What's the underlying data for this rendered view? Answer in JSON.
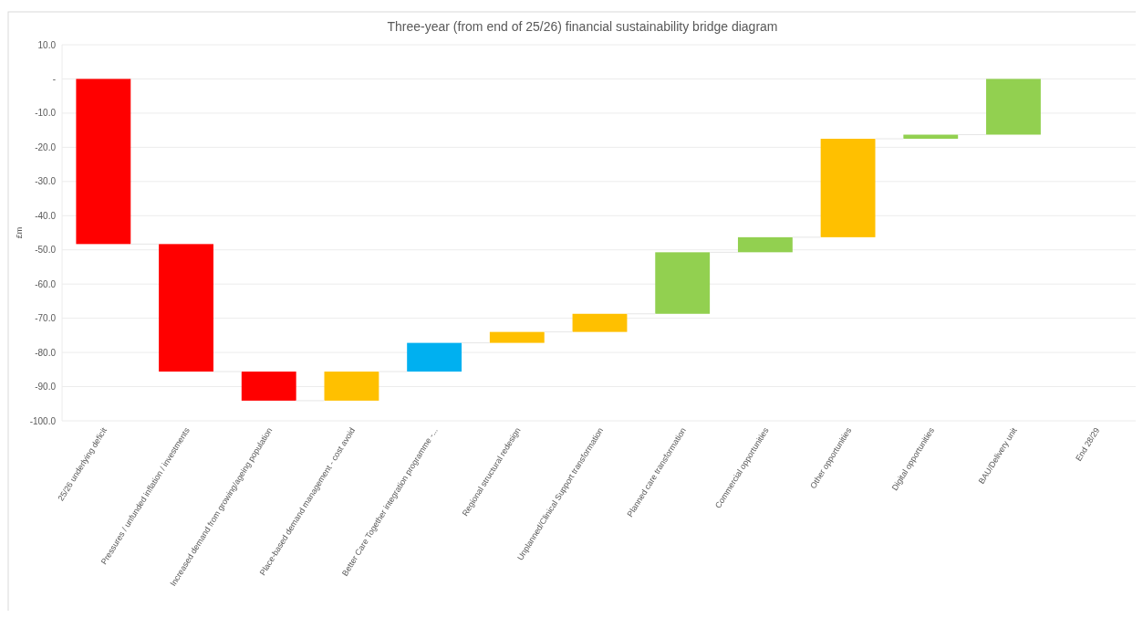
{
  "chart_data": {
    "type": "bar",
    "title": "Three-year (from end of 25/26) financial sustainability bridge diagram",
    "ylabel": "£m",
    "categories": [
      "25/26 underlying deficit",
      "Pressures / unfunded inflation / investments",
      "Increased demand from growing/ageing population",
      "Place-based demand management - cost avoid",
      "Better Care Together integration programme -...",
      "Regional structural redesign",
      "Unplanned/Clinical Support transformation",
      "Planned care transformation",
      "Commercial opportunities",
      "Other opportunities",
      "Digital opportunities",
      "BAU/Delivery unit",
      "End 28/29"
    ],
    "values": [
      -48.3,
      -37.3,
      -8.5,
      8.5,
      8.4,
      3.2,
      5.3,
      18.0,
      4.4,
      28.8,
      1.2,
      16.3,
      null
    ],
    "base": [
      0,
      -48.3,
      -85.6,
      -94.1,
      -85.6,
      -77.2,
      -74.0,
      -68.7,
      -50.7,
      -46.3,
      -17.5,
      -16.3,
      null
    ],
    "colors": [
      "#ff0000",
      "#ff0000",
      "#ff0000",
      "#ffc000",
      "#00b0f0",
      "#ffc000",
      "#ffc000",
      "#92d050",
      "#92d050",
      "#ffc000",
      "#92d050",
      "#92d050",
      null
    ],
    "ylim": [
      -100,
      10
    ],
    "yticks": [
      {
        "value": 10,
        "label": "10.0"
      },
      {
        "value": 0,
        "label": "-"
      },
      {
        "value": -10,
        "label": "-10.0"
      },
      {
        "value": -20,
        "label": "-20.0"
      },
      {
        "value": -30,
        "label": "-30.0"
      },
      {
        "value": -40,
        "label": "-40.0"
      },
      {
        "value": -50,
        "label": "-50.0"
      },
      {
        "value": -60,
        "label": "-60.0"
      },
      {
        "value": -70,
        "label": "-70.0"
      },
      {
        "value": -80,
        "label": "-80.0"
      },
      {
        "value": -90,
        "label": "-90.0"
      },
      {
        "value": -100,
        "label": "-100.0"
      }
    ],
    "grid": "y"
  }
}
